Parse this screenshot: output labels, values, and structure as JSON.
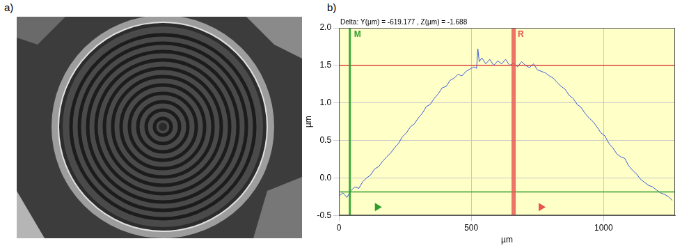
{
  "panel_labels": [
    "a)",
    "b)"
  ],
  "chart_data": {
    "type": "line",
    "title": "Delta: Y(µm) = -619.177 , Z(µm) = -1.688",
    "x_label": "µm",
    "y_label": "µm",
    "color": "#3a5bd9",
    "x": [
      0,
      15,
      30,
      45,
      60,
      75,
      90,
      105,
      120,
      135,
      150,
      165,
      180,
      195,
      210,
      225,
      240,
      255,
      270,
      285,
      300,
      315,
      330,
      345,
      360,
      375,
      390,
      405,
      420,
      435,
      450,
      465,
      480,
      495,
      510,
      520,
      525,
      530,
      540,
      555,
      570,
      585,
      600,
      615,
      630,
      645,
      660,
      675,
      690,
      705,
      720,
      735,
      750,
      765,
      780,
      795,
      810,
      825,
      840,
      855,
      870,
      885,
      900,
      915,
      930,
      945,
      960,
      975,
      990,
      1005,
      1020,
      1035,
      1050,
      1065,
      1080,
      1095,
      1110,
      1125,
      1140,
      1155,
      1170,
      1185,
      1200,
      1215,
      1230,
      1245,
      1260
    ],
    "values": [
      -0.24,
      -0.2,
      -0.26,
      -0.17,
      -0.12,
      -0.14,
      -0.05,
      0.0,
      0.04,
      0.12,
      0.15,
      0.22,
      0.28,
      0.33,
      0.4,
      0.46,
      0.55,
      0.6,
      0.68,
      0.72,
      0.8,
      0.86,
      0.95,
      0.98,
      1.06,
      1.12,
      1.2,
      1.22,
      1.3,
      1.33,
      1.38,
      1.36,
      1.42,
      1.45,
      1.48,
      1.46,
      1.72,
      1.55,
      1.6,
      1.52,
      1.58,
      1.5,
      1.56,
      1.52,
      1.58,
      1.5,
      1.53,
      1.48,
      1.55,
      1.5,
      1.47,
      1.52,
      1.44,
      1.42,
      1.4,
      1.36,
      1.33,
      1.27,
      1.22,
      1.18,
      1.1,
      1.06,
      0.98,
      0.94,
      0.86,
      0.8,
      0.75,
      0.68,
      0.6,
      0.56,
      0.46,
      0.4,
      0.32,
      0.28,
      0.26,
      0.16,
      0.1,
      0.05,
      -0.02,
      -0.06,
      -0.1,
      -0.12,
      -0.16,
      -0.2,
      -0.22,
      -0.25,
      -0.3
    ],
    "xlim": [
      0,
      1270
    ],
    "xticks": [
      0,
      500,
      1000
    ],
    "ylim": [
      -0.5,
      2.0
    ],
    "yticks": [
      -0.5,
      {
        "value": 0,
        "label": "0.0"
      },
      0.5,
      {
        "value": 1,
        "label": "1.0"
      },
      1.5,
      {
        "value": 2,
        "label": "2.0"
      }
    ],
    "grid": true,
    "cursors": [
      {
        "name": "M",
        "x": 41,
        "color": "#2e9e2e"
      },
      {
        "name": "R",
        "x": 660,
        "color": "#e8524f"
      }
    ],
    "levels": [
      {
        "y": 1.5,
        "color": "#d9403d"
      },
      {
        "y": -0.188,
        "color": "#2e9e2e"
      }
    ]
  }
}
